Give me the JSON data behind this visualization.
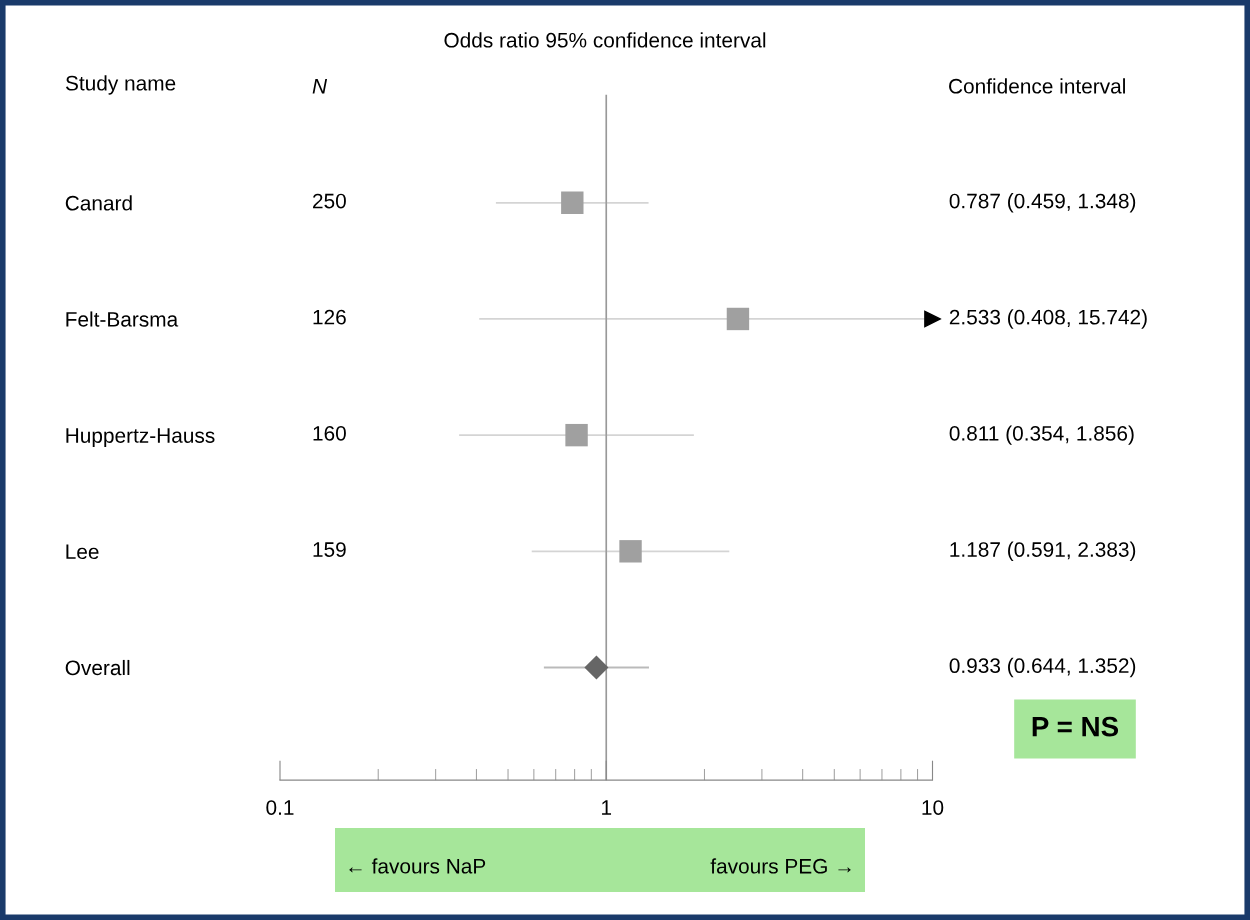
{
  "chart_data": {
    "type": "scatter",
    "orientation": "horizontal",
    "title": "Odds ratio 95% confidence interval",
    "categories": [
      "Canard",
      "Felt-Barsma",
      "Huppertz-Hauss",
      "Lee",
      "Overall"
    ],
    "series": [
      {
        "color": "#a0a0a0",
        "marker": "square",
        "values": [
          0.787,
          2.533,
          0.811,
          1.187,
          null
        ],
        "errors": [
          [
            0.459,
            1.348
          ],
          [
            0.408,
            15.742
          ],
          [
            0.354,
            1.856
          ],
          [
            0.591,
            2.383
          ],
          null
        ]
      },
      {
        "color": "#666666",
        "marker": "diamond",
        "values": [
          null,
          null,
          null,
          null,
          0.933
        ],
        "errors": [
          null,
          null,
          null,
          null,
          [
            0.644,
            1.352
          ]
        ]
      }
    ],
    "log": "x",
    "xlim": [
      0.1,
      10
    ],
    "xticks": [
      0.1,
      1,
      10
    ],
    "ref_lines": [
      {
        "axis": "x",
        "value": 1,
        "color": "#999999"
      }
    ],
    "annotations": [
      "Study name",
      "N",
      "Confidence interval",
      "P = NS",
      "← favours NaP",
      "favours PEG →",
      "250",
      "126",
      "160",
      "159",
      "0.787 (0.459, 1.348)",
      "2.533 (0.408, 15.742)",
      "0.811 (0.354, 1.856)",
      "1.187 (0.591, 2.383)",
      "0.933 (0.644, 1.352)"
    ],
    "grid": false
  }
}
